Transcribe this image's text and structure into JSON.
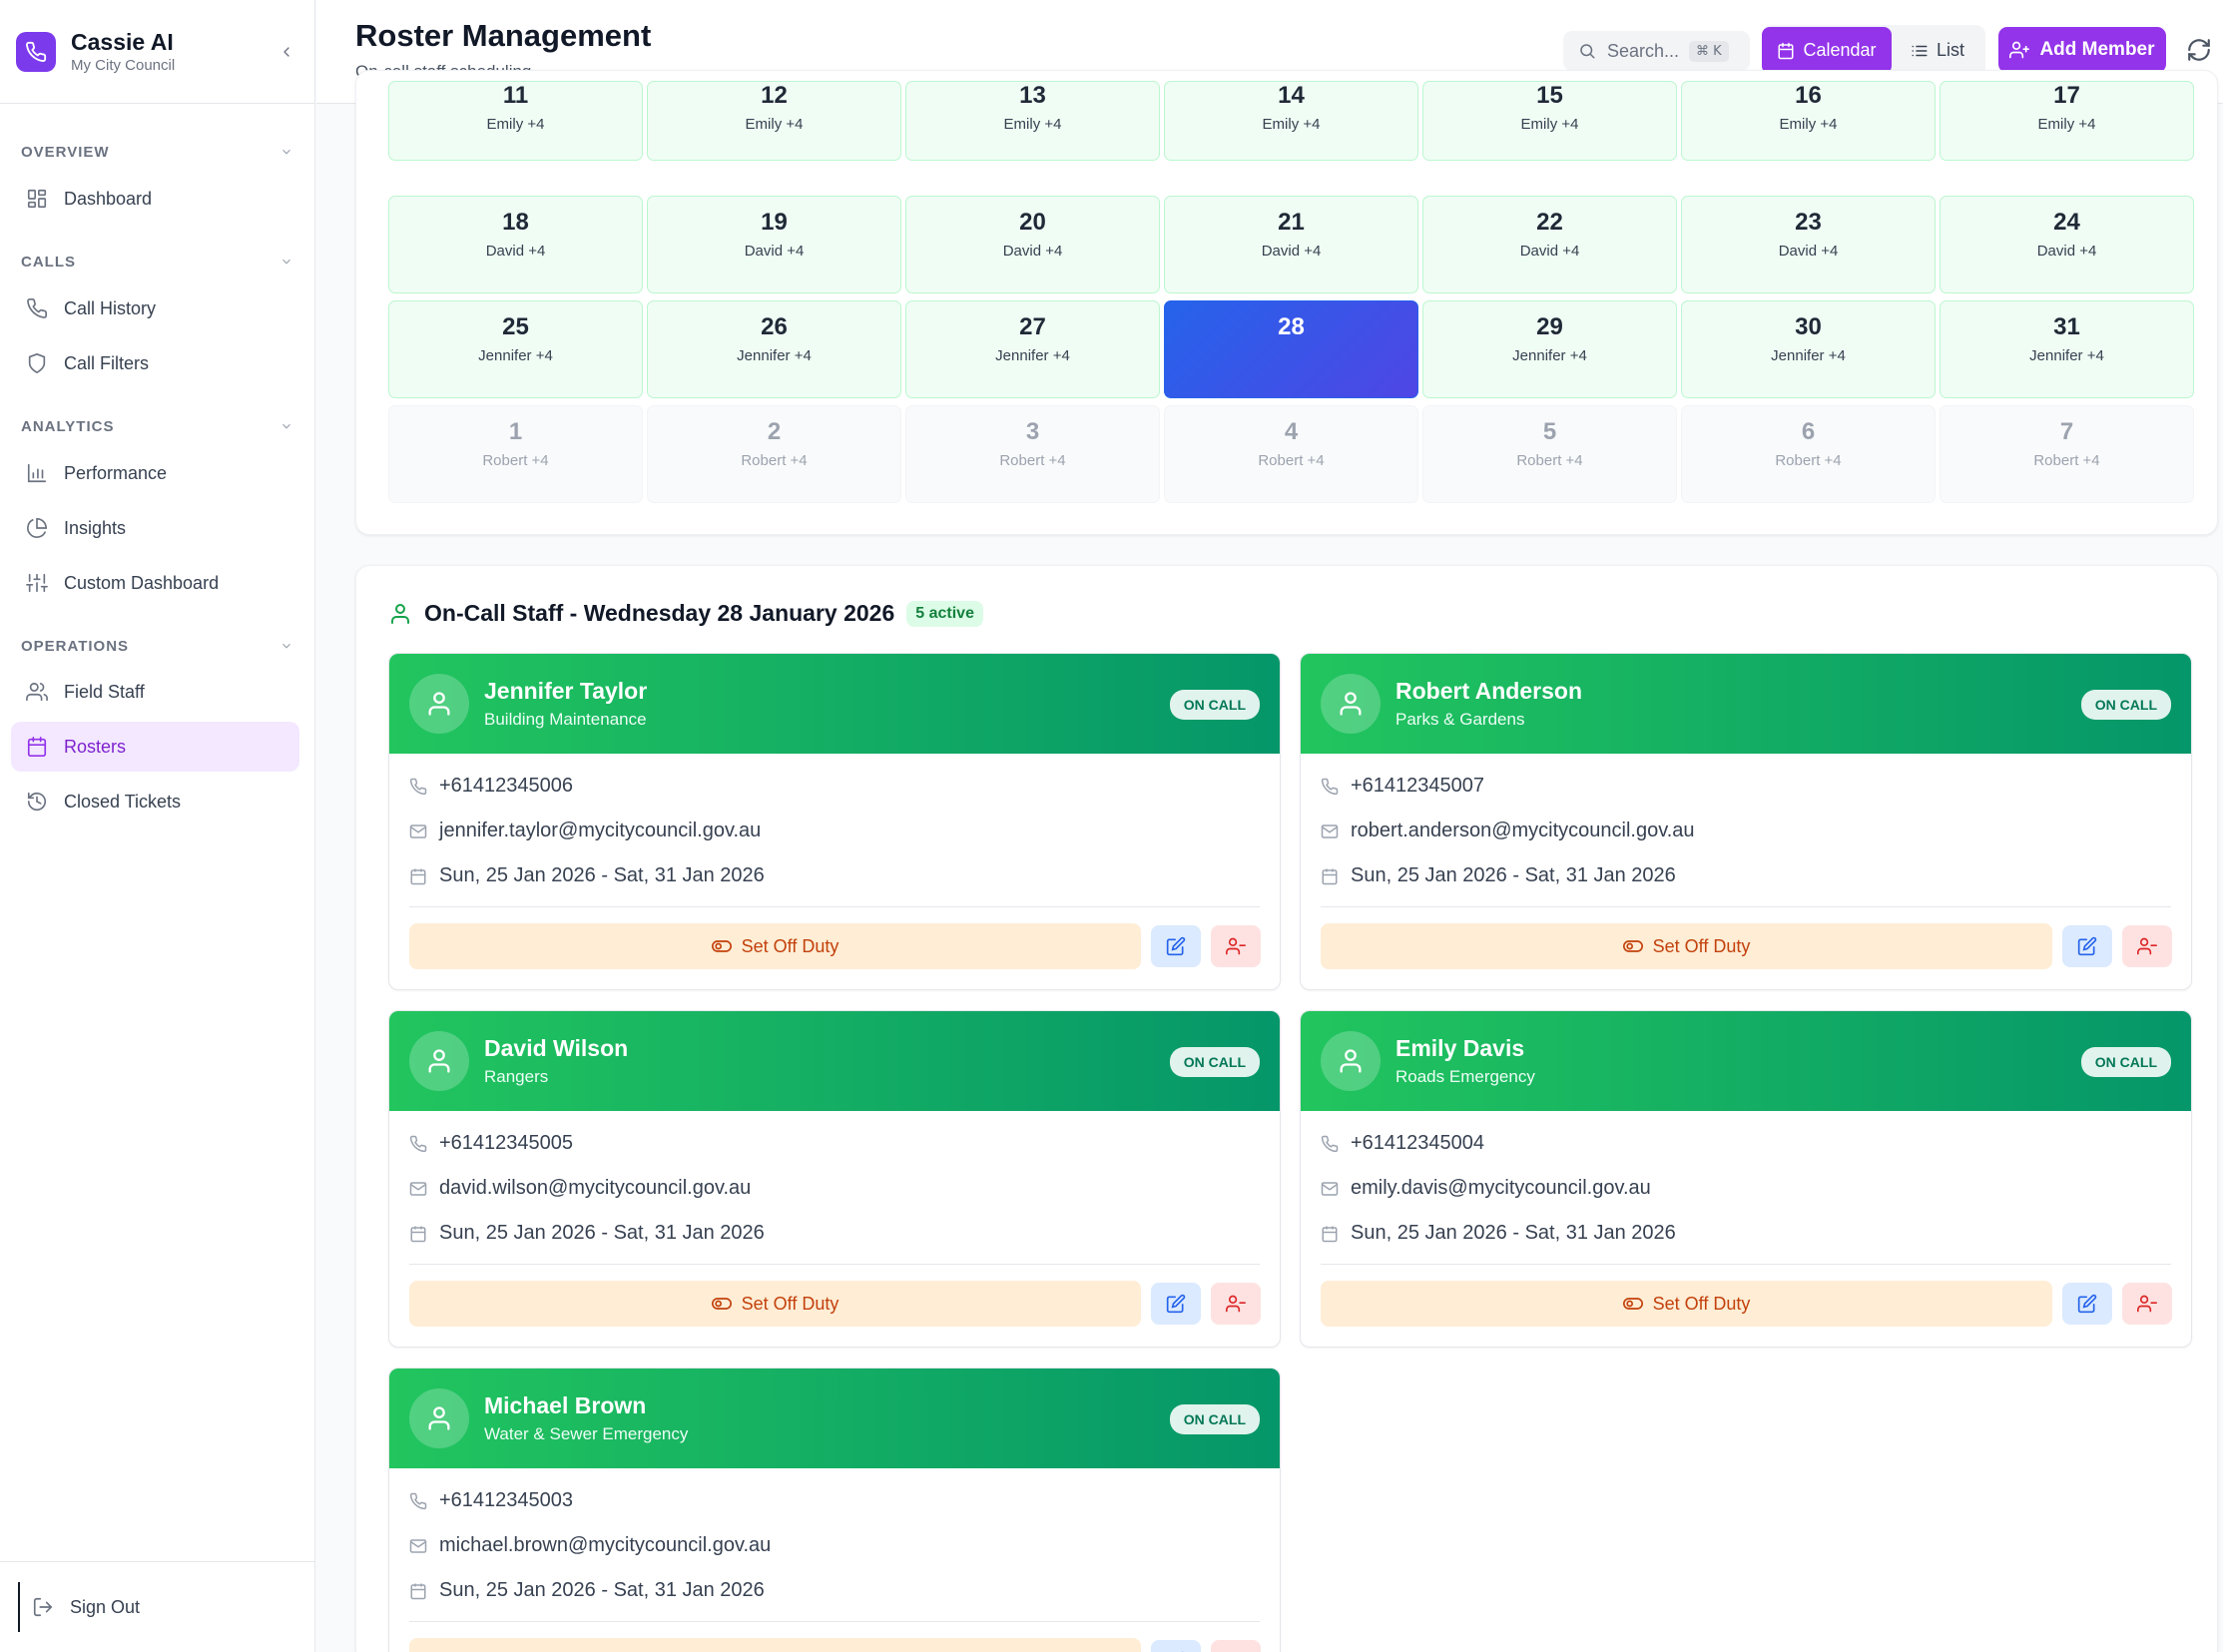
{
  "app": {
    "title": "Cassie AI",
    "subtitle": "My City Council"
  },
  "colors": {
    "accent": "#9333ea",
    "on_call_green": "#22c55e",
    "today_blue": "#2563eb",
    "off_duty_orange": "#c2410c"
  },
  "sidebar": {
    "sections": [
      {
        "label": "OVERVIEW",
        "items": [
          {
            "label": "Dashboard",
            "icon": "dashboard-icon"
          }
        ]
      },
      {
        "label": "CALLS",
        "items": [
          {
            "label": "Call History",
            "icon": "phone-icon"
          },
          {
            "label": "Call Filters",
            "icon": "shield-icon"
          }
        ]
      },
      {
        "label": "ANALYTICS",
        "items": [
          {
            "label": "Performance",
            "icon": "bar-chart-icon"
          },
          {
            "label": "Insights",
            "icon": "pie-chart-icon"
          },
          {
            "label": "Custom Dashboard",
            "icon": "sliders-icon"
          }
        ]
      },
      {
        "label": "OPERATIONS",
        "items": [
          {
            "label": "Field Staff",
            "icon": "users-icon"
          },
          {
            "label": "Rosters",
            "icon": "calendar-icon",
            "active": true
          },
          {
            "label": "Closed Tickets",
            "icon": "history-icon"
          }
        ]
      }
    ],
    "sign_out": "Sign Out"
  },
  "header": {
    "title": "Roster Management",
    "subtitle": "On-call staff scheduling",
    "search_placeholder": "Search...",
    "search_shortcut": "⌘ K",
    "view_calendar": "Calendar",
    "view_list": "List",
    "add_member": "Add Member"
  },
  "calendar": {
    "weeks": [
      {
        "days": [
          "11",
          "12",
          "13",
          "14",
          "15",
          "16",
          "17"
        ],
        "label": "Emily +4",
        "kind": "current"
      },
      {
        "days": [
          "18",
          "19",
          "20",
          "21",
          "22",
          "23",
          "24"
        ],
        "label": "David +4",
        "kind": "current"
      },
      {
        "days": [
          "25",
          "26",
          "27",
          "28",
          "29",
          "30",
          "31"
        ],
        "label": "Jennifer +4",
        "kind": "current",
        "today_index": 3
      },
      {
        "days": [
          "1",
          "2",
          "3",
          "4",
          "5",
          "6",
          "7"
        ],
        "label": "Robert +4",
        "kind": "other"
      }
    ]
  },
  "oncall": {
    "title": "On-Call Staff - Wednesday 28 January 2026",
    "badge": "5 active",
    "status_label": "ON CALL",
    "off_duty_label": "Set Off Duty",
    "staff": [
      {
        "name": "Jennifer Taylor",
        "dept": "Building Maintenance",
        "phone": "+61412345006",
        "email": "jennifer.taylor@mycitycouncil.gov.au",
        "period": "Sun, 25 Jan 2026 - Sat, 31 Jan 2026"
      },
      {
        "name": "Robert Anderson",
        "dept": "Parks & Gardens",
        "phone": "+61412345007",
        "email": "robert.anderson@mycitycouncil.gov.au",
        "period": "Sun, 25 Jan 2026 - Sat, 31 Jan 2026"
      },
      {
        "name": "David Wilson",
        "dept": "Rangers",
        "phone": "+61412345005",
        "email": "david.wilson@mycitycouncil.gov.au",
        "period": "Sun, 25 Jan 2026 - Sat, 31 Jan 2026"
      },
      {
        "name": "Emily Davis",
        "dept": "Roads Emergency",
        "phone": "+61412345004",
        "email": "emily.davis@mycitycouncil.gov.au",
        "period": "Sun, 25 Jan 2026 - Sat, 31 Jan 2026"
      },
      {
        "name": "Michael Brown",
        "dept": "Water & Sewer Emergency",
        "phone": "+61412345003",
        "email": "michael.brown@mycitycouncil.gov.au",
        "period": "Sun, 25 Jan 2026 - Sat, 31 Jan 2026"
      }
    ]
  }
}
